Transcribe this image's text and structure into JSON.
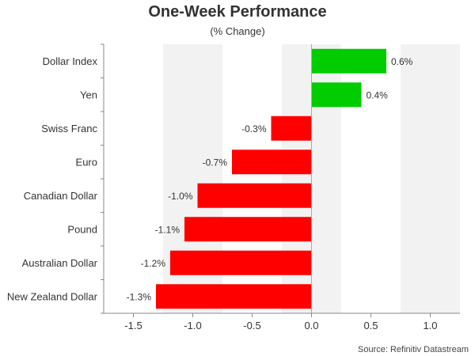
{
  "chart_data": {
    "type": "bar",
    "orientation": "horizontal",
    "title": "One-Week Performance",
    "subtitle": "(% Change)",
    "source": "Source: Refinitiv Datastream",
    "categories": [
      "Dollar Index",
      "Yen",
      "Swiss Franc",
      "Euro",
      "Canadian Dollar",
      "Pound",
      "Australian Dollar",
      "New Zealand Dollar"
    ],
    "values": [
      0.63,
      0.42,
      -0.34,
      -0.67,
      -0.96,
      -1.07,
      -1.19,
      -1.31
    ],
    "data_labels": [
      "0.6%",
      "0.4%",
      "-0.3%",
      "-0.7%",
      "-1.0%",
      "-1.1%",
      "-1.2%",
      "-1.3%"
    ],
    "xlim": [
      -1.75,
      1.25
    ],
    "xticks": [
      -1.5,
      -1.0,
      -0.5,
      0.0,
      0.5,
      1.0
    ],
    "xtick_labels": [
      "-1.5",
      "-1.0",
      "-0.5",
      "0.0",
      "0.5",
      "1.0"
    ],
    "colors": {
      "positive": "#00cc00",
      "negative": "#ff0000",
      "band": "#f2f2f2",
      "axis": "#888888"
    },
    "grid": "alternating vertical bands"
  }
}
